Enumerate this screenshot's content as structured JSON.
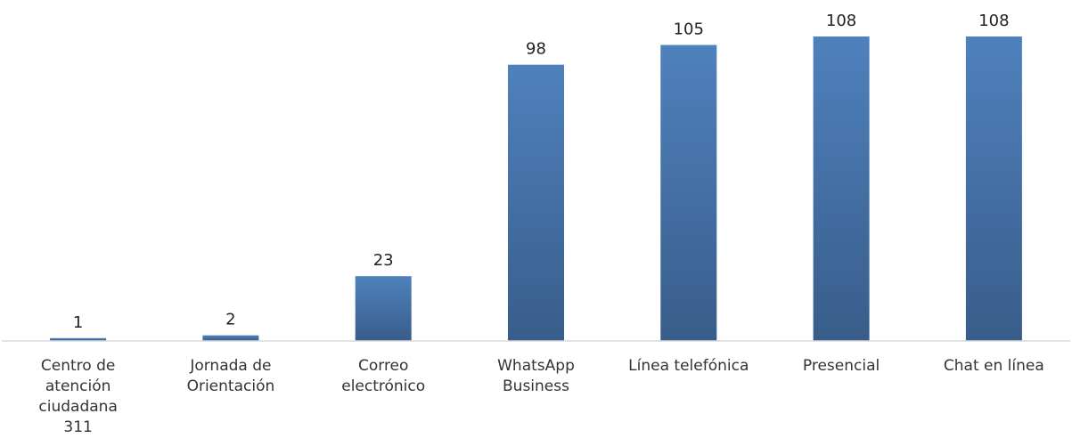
{
  "chart_data": {
    "type": "bar",
    "categories": [
      "Centro de atención ciudadana 311",
      "Jornada de Orientación",
      "Correo electrónico",
      "WhatsApp Business",
      "Línea telefónica",
      "Presencial",
      "Chat en línea"
    ],
    "values": [
      1,
      2,
      23,
      98,
      105,
      108,
      108
    ],
    "data_labels": [
      "1",
      "2",
      "23",
      "98",
      "105",
      "108",
      "108"
    ],
    "ylim": [
      0,
      108
    ],
    "grid": false,
    "legend": "none",
    "title": "",
    "xlabel": "",
    "ylabel": ""
  },
  "colors": {
    "bar_top": "#4f81bd",
    "bar_bottom": "#385d8a",
    "axis": "#d9d9d9"
  }
}
